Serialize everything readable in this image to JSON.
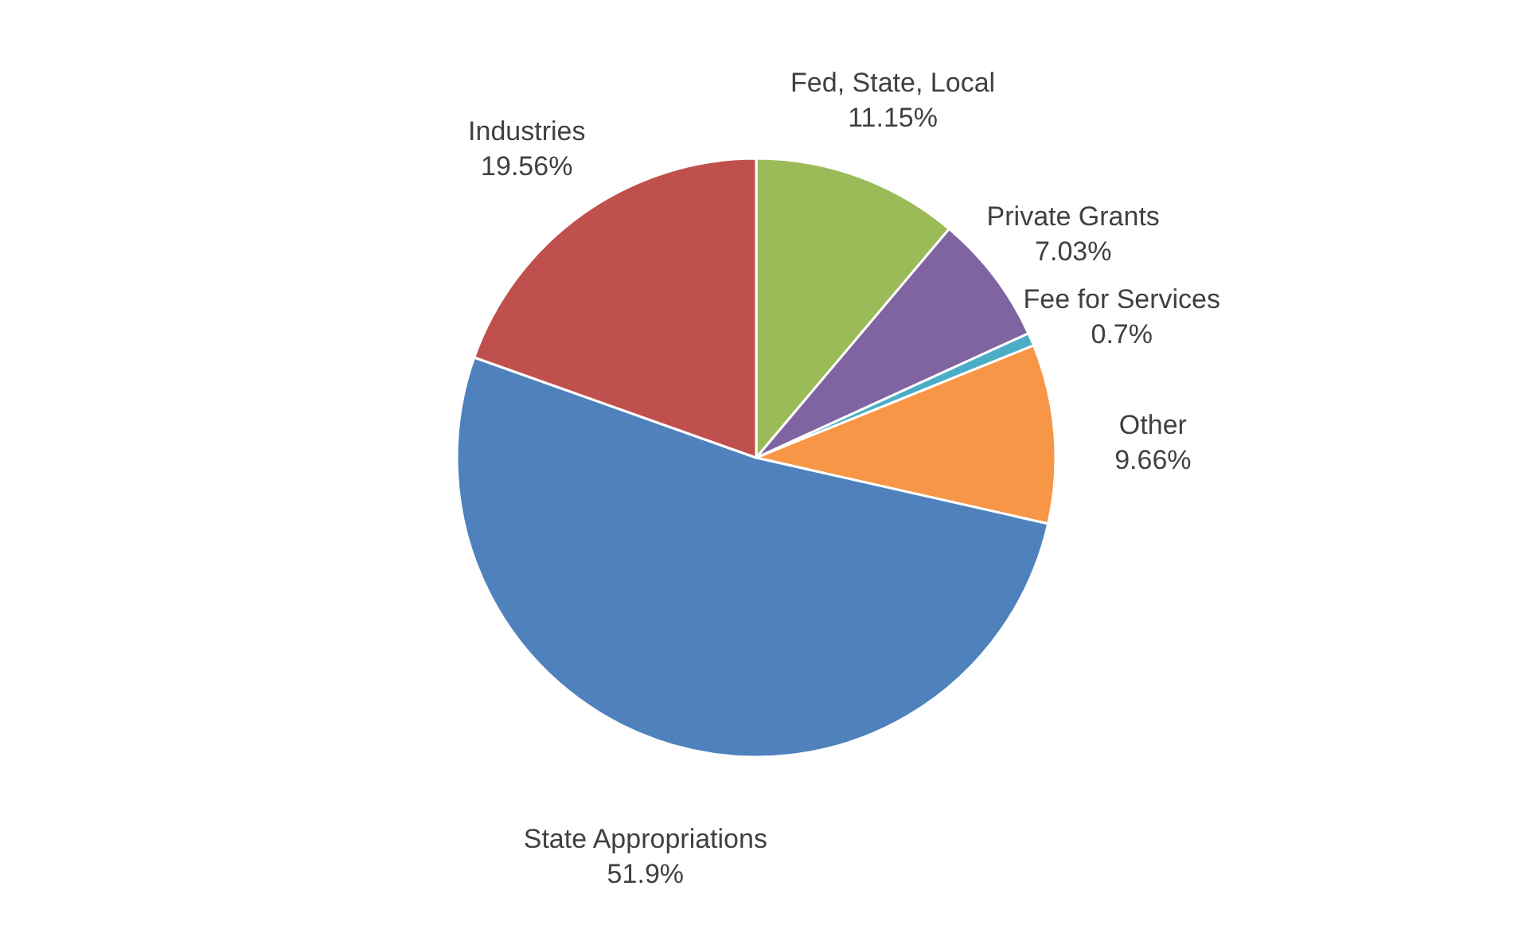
{
  "chart_data": {
    "type": "pie",
    "categories": [
      "Fed, State, Local",
      "Private Grants",
      "Fee for Services",
      "Other",
      "State Appropriations",
      "Industries"
    ],
    "values": [
      11.15,
      7.03,
      0.7,
      9.66,
      51.9,
      19.56
    ],
    "value_labels": [
      "11.15%",
      "7.03%",
      "0.7%",
      "9.66%",
      "51.9%",
      "19.56%"
    ],
    "colors": [
      "#9bbb59",
      "#8064a2",
      "#4bacc6",
      "#f79646",
      "#4f81bd",
      "#c0504d"
    ],
    "legend": false
  }
}
